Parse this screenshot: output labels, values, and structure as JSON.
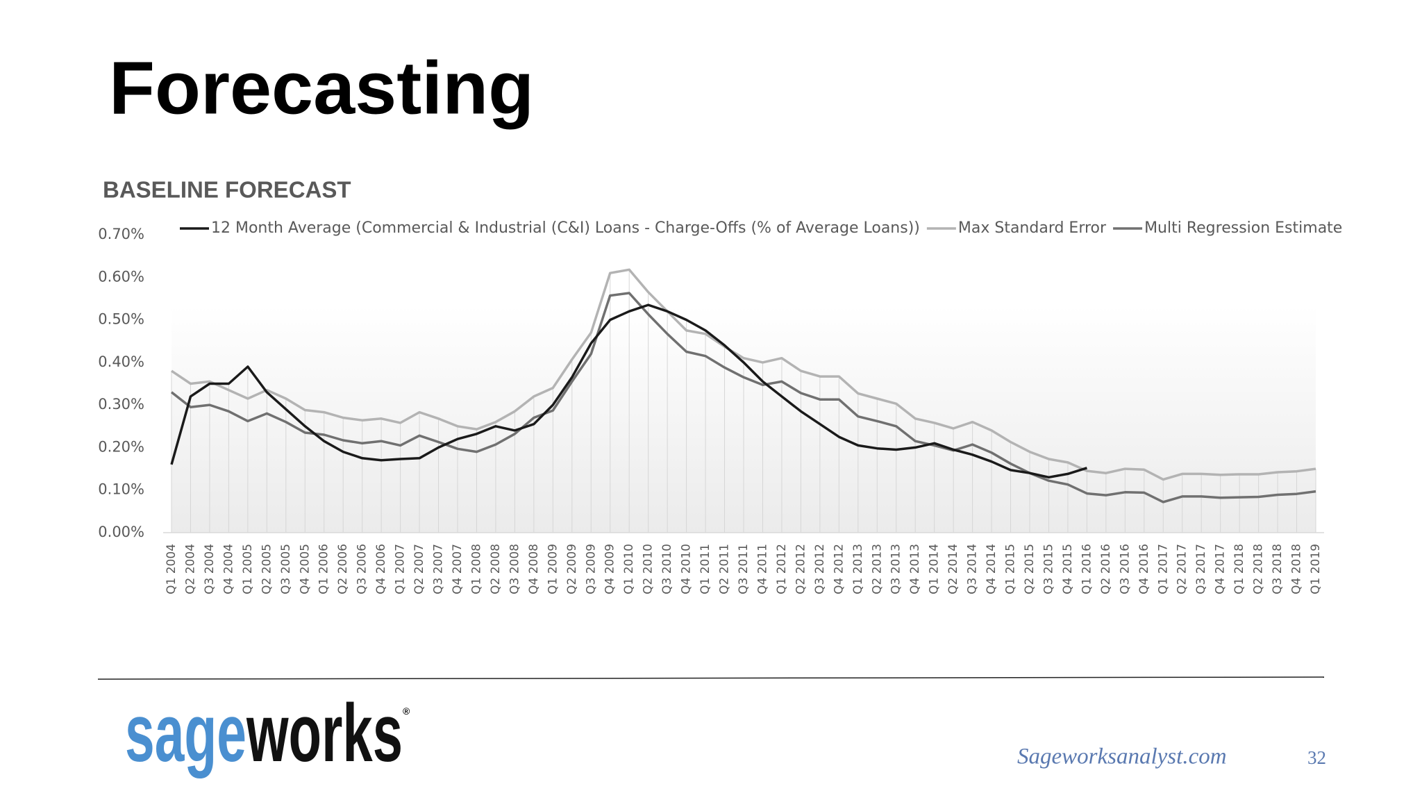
{
  "title": "Forecasting",
  "footer": {
    "site": "Sageworksanalyst.com",
    "page": "32"
  },
  "logo": {
    "part1": "sage",
    "part2": "works",
    "mark": "®"
  },
  "chart_data": {
    "type": "line",
    "title": "BASELINE FORECAST",
    "categories": [
      "Q1 2004",
      "Q2 2004",
      "Q3 2004",
      "Q4 2004",
      "Q1 2005",
      "Q2 2005",
      "Q3 2005",
      "Q4 2005",
      "Q1 2006",
      "Q2 2006",
      "Q3 2006",
      "Q4 2006",
      "Q1 2007",
      "Q2 2007",
      "Q3 2007",
      "Q4 2007",
      "Q1 2008",
      "Q2 2008",
      "Q3 2008",
      "Q4 2008",
      "Q1 2009",
      "Q2 2009",
      "Q3 2009",
      "Q4 2009",
      "Q1 2010",
      "Q2 2010",
      "Q3 2010",
      "Q4 2010",
      "Q1 2011",
      "Q2 2011",
      "Q3 2011",
      "Q4 2011",
      "Q1 2012",
      "Q2 2012",
      "Q3 2012",
      "Q4 2012",
      "Q1 2013",
      "Q2 2013",
      "Q3 2013",
      "Q4 2013",
      "Q1 2014",
      "Q2 2014",
      "Q3 2014",
      "Q4 2014",
      "Q1 2015",
      "Q2 2015",
      "Q3 2015",
      "Q4 2015",
      "Q1 2016",
      "Q2 2016",
      "Q3 2016",
      "Q4 2016",
      "Q1 2017",
      "Q2 2017",
      "Q3 2017",
      "Q4 2017",
      "Q1 2018",
      "Q2 2018",
      "Q3 2018",
      "Q4 2018",
      "Q1 2019"
    ],
    "series": [
      {
        "name": "12 Month Average (Commercial & Industrial (C&I) Loans - Charge-Offs (% of Average Loans))",
        "color": "#1a1a1a",
        "values": [
          0.16,
          0.32,
          0.35,
          0.35,
          0.39,
          0.33,
          0.29,
          0.25,
          0.215,
          0.19,
          0.175,
          0.17,
          0.173,
          0.175,
          0.2,
          0.22,
          0.232,
          0.25,
          0.24,
          0.255,
          0.3,
          0.365,
          0.445,
          0.5,
          0.52,
          0.535,
          0.52,
          0.5,
          0.475,
          0.44,
          0.4,
          0.355,
          0.32,
          0.285,
          0.255,
          0.225,
          0.205,
          0.198,
          0.195,
          0.2,
          0.21,
          0.195,
          0.183,
          0.167,
          0.147,
          0.14,
          0.13,
          0.138,
          0.152,
          null,
          null,
          null,
          null,
          null,
          null,
          null,
          null,
          null,
          null,
          null,
          null
        ]
      },
      {
        "name": "Max Standard Error",
        "color": "#b3b3b3",
        "values": [
          0.38,
          0.35,
          0.355,
          0.335,
          0.315,
          0.335,
          0.315,
          0.288,
          0.283,
          0.27,
          0.264,
          0.268,
          0.258,
          0.283,
          0.268,
          0.25,
          0.243,
          0.26,
          0.285,
          0.32,
          0.34,
          0.407,
          0.47,
          0.61,
          0.618,
          0.565,
          0.52,
          0.475,
          0.467,
          0.437,
          0.41,
          0.4,
          0.41,
          0.38,
          0.367,
          0.367,
          0.327,
          0.315,
          0.303,
          0.268,
          0.258,
          0.245,
          0.26,
          0.24,
          0.213,
          0.19,
          0.173,
          0.165,
          0.145,
          0.14,
          0.15,
          0.148,
          0.125,
          0.138,
          0.138,
          0.136,
          0.137,
          0.137,
          0.142,
          0.144,
          0.15
        ]
      },
      {
        "name": "Multi Regression Estimate",
        "color": "#707070",
        "values": [
          0.33,
          0.295,
          0.3,
          0.285,
          0.262,
          0.28,
          0.26,
          0.235,
          0.23,
          0.217,
          0.21,
          0.215,
          0.205,
          0.228,
          0.213,
          0.197,
          0.19,
          0.207,
          0.232,
          0.27,
          0.287,
          0.355,
          0.42,
          0.557,
          0.563,
          0.513,
          0.467,
          0.425,
          0.415,
          0.388,
          0.365,
          0.347,
          0.355,
          0.328,
          0.313,
          0.313,
          0.273,
          0.262,
          0.25,
          0.215,
          0.205,
          0.193,
          0.207,
          0.188,
          0.162,
          0.14,
          0.122,
          0.113,
          0.092,
          0.088,
          0.095,
          0.094,
          0.072,
          0.085,
          0.085,
          0.082,
          0.083,
          0.084,
          0.089,
          0.091,
          0.097
        ]
      }
    ],
    "ylim": [
      0,
      0.7
    ],
    "yticks": [
      {
        "value": 0,
        "label": "0.00%"
      },
      {
        "value": 0.1,
        "label": "0.10%"
      },
      {
        "value": 0.2,
        "label": "0.20%"
      },
      {
        "value": 0.3,
        "label": "0.30%"
      },
      {
        "value": 0.4,
        "label": "0.40%"
      },
      {
        "value": 0.5,
        "label": "0.50%"
      },
      {
        "value": 0.6,
        "label": "0.60%"
      },
      {
        "value": 0.7,
        "label": "0.70%"
      }
    ],
    "legend": "top",
    "grid": false
  }
}
